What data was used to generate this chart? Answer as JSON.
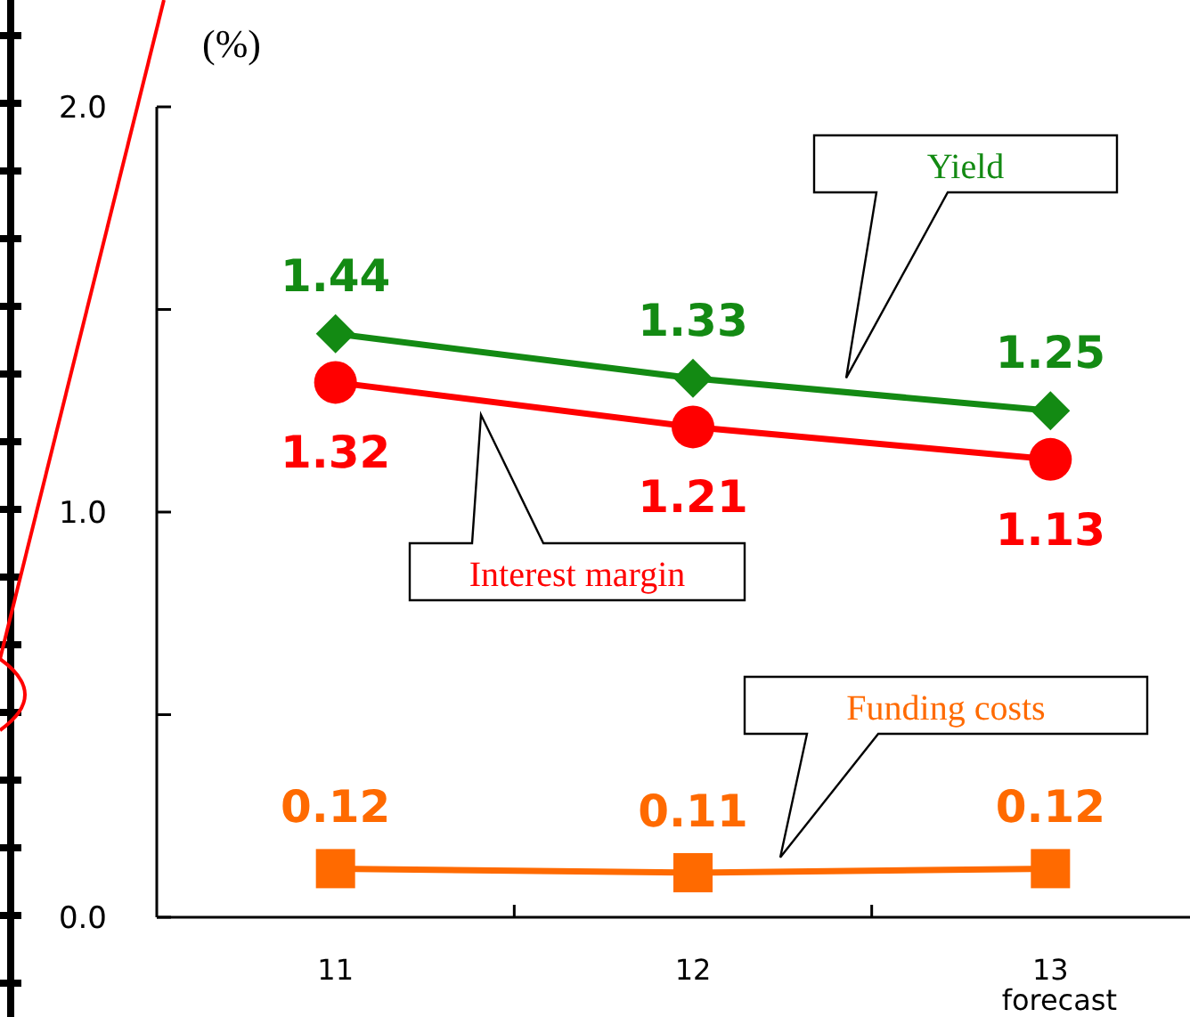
{
  "chart_data": {
    "type": "line",
    "ylabel": "(%)",
    "categories": [
      "11",
      "12",
      "13\nforecast"
    ],
    "series": [
      {
        "name": "Yield",
        "color": "#138a13",
        "values": [
          1.44,
          1.33,
          1.25
        ],
        "marker": "diamond"
      },
      {
        "name": "Interest margin",
        "color": "#ff0000",
        "values": [
          1.32,
          1.21,
          1.13
        ],
        "marker": "circle"
      },
      {
        "name": "Funding costs",
        "color": "#ff6a00",
        "values": [
          0.12,
          0.11,
          0.12
        ],
        "marker": "square"
      }
    ],
    "ylim": [
      0,
      2
    ],
    "yticks": [
      {
        "value": 0,
        "label": "0.0"
      },
      {
        "value": 0.5,
        "label": null
      },
      {
        "value": 1,
        "label": "1.0"
      },
      {
        "value": 1.5,
        "label": null
      },
      {
        "value": 2,
        "label": "2.0"
      }
    ],
    "data_labels": true,
    "grid": false,
    "legend": false,
    "line_style": "solid"
  }
}
